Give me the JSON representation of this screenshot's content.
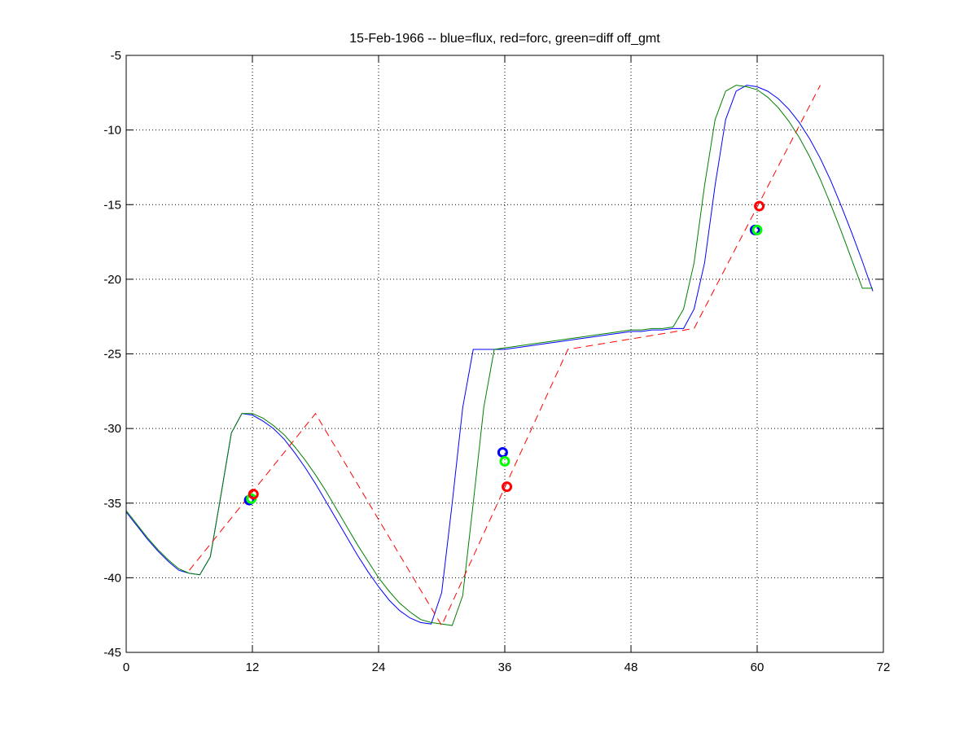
{
  "chart_data": {
    "type": "line",
    "title": "15-Feb-1966 -- blue=flux, red=forc, green=diff off_gmt",
    "xlabel": "",
    "ylabel": "",
    "xlim": [
      0,
      72
    ],
    "ylim": [
      -45,
      -5
    ],
    "xticks": [
      0,
      12,
      24,
      36,
      48,
      60,
      72
    ],
    "yticks": [
      -45,
      -40,
      -35,
      -30,
      -25,
      -20,
      -15,
      -10,
      -5
    ],
    "grid": true,
    "series": [
      {
        "color": "#0000ff",
        "style": "solid",
        "x": [
          0,
          1,
          2,
          3,
          4,
          5,
          6,
          7,
          8,
          9,
          10,
          11,
          12,
          13,
          14,
          15,
          16,
          17,
          18,
          19,
          20,
          21,
          22,
          23,
          24,
          25,
          26,
          27,
          28,
          29,
          30,
          31,
          32,
          33,
          34,
          35,
          36,
          37,
          38,
          39,
          40,
          41,
          42,
          43,
          44,
          45,
          46,
          47,
          48,
          49,
          50,
          51,
          52,
          53,
          54,
          55,
          56,
          57,
          58,
          59,
          60,
          61,
          62,
          63,
          64,
          65,
          66,
          67,
          68,
          69,
          70,
          71
        ],
        "y": [
          -35.6,
          -36.5,
          -37.4,
          -38.2,
          -38.9,
          -39.5,
          -39.7,
          -39.8,
          -38.6,
          -34.5,
          -30.3,
          -29.0,
          -29.1,
          -29.5,
          -30.0,
          -30.7,
          -31.6,
          -32.6,
          -33.7,
          -34.9,
          -36.1,
          -37.3,
          -38.5,
          -39.6,
          -40.6,
          -41.5,
          -42.2,
          -42.7,
          -43.0,
          -43.1,
          -41.0,
          -35.0,
          -28.6,
          -24.7,
          -24.7,
          -24.7,
          -24.7,
          -24.6,
          -24.5,
          -24.4,
          -24.3,
          -24.2,
          -24.1,
          -24.0,
          -23.9,
          -23.8,
          -23.7,
          -23.6,
          -23.5,
          -23.5,
          -23.4,
          -23.4,
          -23.3,
          -23.3,
          -22.0,
          -18.9,
          -13.7,
          -9.3,
          -7.4,
          -7.0,
          -7.1,
          -7.4,
          -7.9,
          -8.6,
          -9.5,
          -10.6,
          -11.9,
          -13.4,
          -15.1,
          -16.9,
          -18.8,
          -20.8
        ]
      },
      {
        "color": "#008000",
        "style": "solid",
        "x": [
          0,
          1,
          2,
          3,
          4,
          5,
          6,
          7,
          8,
          9,
          10,
          11,
          12,
          13,
          14,
          15,
          16,
          17,
          18,
          19,
          20,
          21,
          22,
          23,
          24,
          25,
          26,
          27,
          28,
          29,
          30,
          31,
          32,
          33,
          34,
          35,
          36,
          37,
          38,
          39,
          40,
          41,
          42,
          43,
          44,
          45,
          46,
          47,
          48,
          49,
          50,
          51,
          52,
          53,
          54,
          55,
          56,
          57,
          58,
          59,
          60,
          61,
          62,
          63,
          64,
          65,
          66,
          67,
          68,
          69,
          70,
          71
        ],
        "y": [
          -35.5,
          -36.4,
          -37.3,
          -38.1,
          -38.8,
          -39.4,
          -39.7,
          -39.8,
          -38.6,
          -34.5,
          -30.3,
          -29.0,
          -29.0,
          -29.3,
          -29.8,
          -30.4,
          -31.2,
          -32.1,
          -33.1,
          -34.2,
          -35.4,
          -36.6,
          -37.8,
          -38.9,
          -40.0,
          -40.9,
          -41.7,
          -42.3,
          -42.8,
          -43.0,
          -43.1,
          -43.2,
          -41.2,
          -35.0,
          -28.6,
          -24.7,
          -24.6,
          -24.5,
          -24.4,
          -24.3,
          -24.2,
          -24.1,
          -24.0,
          -23.9,
          -23.8,
          -23.7,
          -23.6,
          -23.5,
          -23.4,
          -23.4,
          -23.3,
          -23.3,
          -23.2,
          -22.0,
          -18.9,
          -13.7,
          -9.3,
          -7.4,
          -7.0,
          -7.1,
          -7.3,
          -7.8,
          -8.5,
          -9.4,
          -10.5,
          -11.8,
          -13.3,
          -15.0,
          -16.8,
          -18.7,
          -20.6,
          -20.6
        ]
      },
      {
        "color": "#ff0000",
        "style": "dashed",
        "x": [
          6,
          18,
          30,
          42,
          54,
          66
        ],
        "y": [
          -39.5,
          -29.0,
          -43.2,
          -24.7,
          -23.3,
          -7.0
        ]
      }
    ],
    "markers": [
      {
        "color": "#0000ff",
        "x": [
          11.7,
          35.8,
          59.8
        ],
        "y": [
          -34.8,
          -31.6,
          -16.7
        ]
      },
      {
        "color": "#00ff00",
        "x": [
          11.9,
          36.0,
          60.0
        ],
        "y": [
          -34.7,
          -32.2,
          -16.7
        ]
      },
      {
        "color": "#ff0000",
        "x": [
          12.1,
          36.2,
          60.2
        ],
        "y": [
          -34.4,
          -33.9,
          -15.1
        ]
      }
    ]
  }
}
